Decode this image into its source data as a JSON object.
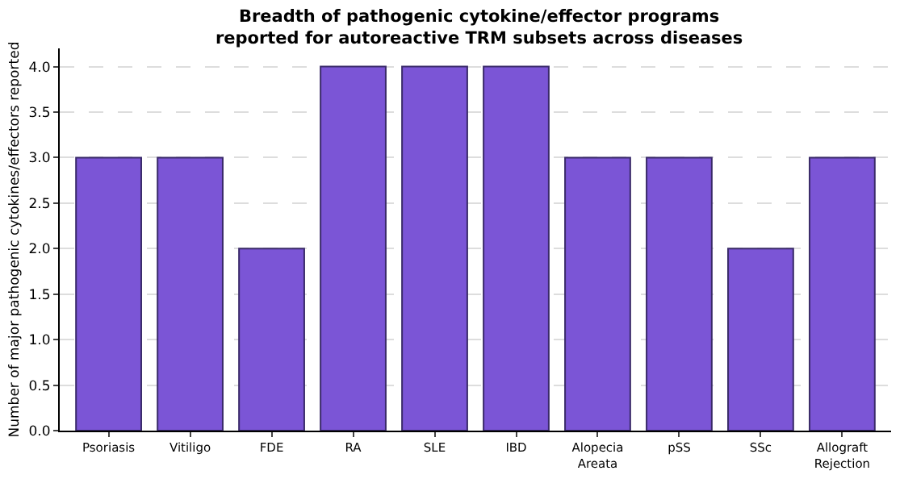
{
  "chart_data": {
    "type": "bar",
    "title": "Breadth of pathogenic cytokine/effector programs\nreported for autoreactive TRM subsets across diseases",
    "ylabel": "Number of major pathogenic cytokines/effectors reported",
    "categories": [
      "Psoriasis",
      "Vitiligo",
      "FDE",
      "RA",
      "SLE",
      "IBD",
      "Alopecia Areata",
      "pSS",
      "SSc",
      "Allograft Rejection"
    ],
    "values": [
      3,
      3,
      2,
      4,
      4,
      4,
      3,
      3,
      2,
      3
    ],
    "color": "#7b55d6",
    "ylim": [
      0,
      4.2
    ],
    "yticks": [
      {
        "value": 0,
        "label": "0.0"
      },
      {
        "value": 0.5,
        "label": "0.5"
      },
      {
        "value": 1,
        "label": "1.0"
      },
      {
        "value": 1.5,
        "label": "1.5"
      },
      {
        "value": 2,
        "label": "2.0"
      },
      {
        "value": 2.5,
        "label": "2.5"
      },
      {
        "value": 3,
        "label": "3.0"
      },
      {
        "value": 3.5,
        "label": "3.5"
      },
      {
        "value": 4,
        "label": "4.0"
      }
    ],
    "grid": "y"
  }
}
